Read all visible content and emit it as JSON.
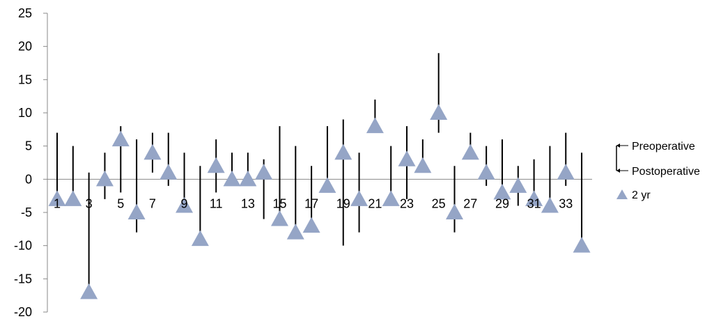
{
  "chart_data": {
    "type": "scatter",
    "title": "",
    "xlabel": "",
    "ylabel": "",
    "ylim": [
      -20,
      25
    ],
    "yticks": [
      -20,
      -15,
      -10,
      -5,
      0,
      5,
      10,
      15,
      20,
      25
    ],
    "ytick_labels": [
      "-20",
      "-15",
      "-10",
      "-5",
      "0",
      "5",
      "10",
      "15",
      "20",
      "25"
    ],
    "x": [
      1,
      2,
      3,
      4,
      5,
      6,
      7,
      8,
      9,
      10,
      11,
      12,
      13,
      14,
      15,
      16,
      17,
      18,
      19,
      20,
      21,
      22,
      23,
      24,
      25,
      26,
      27,
      28,
      29,
      30,
      31,
      32,
      33,
      34
    ],
    "xtick_labels": [
      "1",
      "3",
      "5",
      "7",
      "9",
      "11",
      "13",
      "15",
      "17",
      "19",
      "21",
      "23",
      "25",
      "27",
      "29",
      "31",
      "33"
    ],
    "series": [
      {
        "name": "Preoperative",
        "values": [
          7,
          5,
          1,
          4,
          8,
          6,
          7,
          7,
          4,
          2,
          6,
          4,
          4,
          3,
          8,
          5,
          2,
          8,
          9,
          4,
          12,
          5,
          8,
          6,
          19,
          2,
          7,
          5,
          6,
          2,
          3,
          5,
          7,
          4
        ]
      },
      {
        "name": "Postoperative",
        "values": [
          -3,
          -3,
          -16,
          -3,
          -2,
          -8,
          1,
          -1,
          -4,
          -9,
          -2,
          0,
          0,
          -6,
          -6,
          -8,
          -7,
          -1,
          -10,
          -8,
          7,
          -3,
          -3,
          1,
          7,
          -8,
          3,
          -1,
          -3,
          -4,
          -3,
          -4,
          -1,
          -9
        ]
      },
      {
        "name": "2 yr",
        "values": [
          -3,
          -3,
          -17,
          0,
          6,
          -5,
          4,
          1,
          -4,
          -9,
          2,
          0,
          0,
          1,
          -6,
          -8,
          -7,
          -1,
          4,
          -3,
          8,
          -3,
          3,
          2,
          10,
          -5,
          4,
          1,
          -2,
          -1,
          -3,
          -4,
          1,
          -10
        ]
      }
    ],
    "colors": {
      "marker": "#95a5c6",
      "range_line": "#000000",
      "axis": "#888888"
    },
    "legend": {
      "position": "right",
      "items": [
        {
          "label": "Preoperative",
          "icon": "arrow-left-icon"
        },
        {
          "label": "Postoperative",
          "icon": "arrow-left-icon"
        },
        {
          "label": "2 yr",
          "icon": "triangle-marker-icon"
        }
      ]
    },
    "grid": false
  }
}
